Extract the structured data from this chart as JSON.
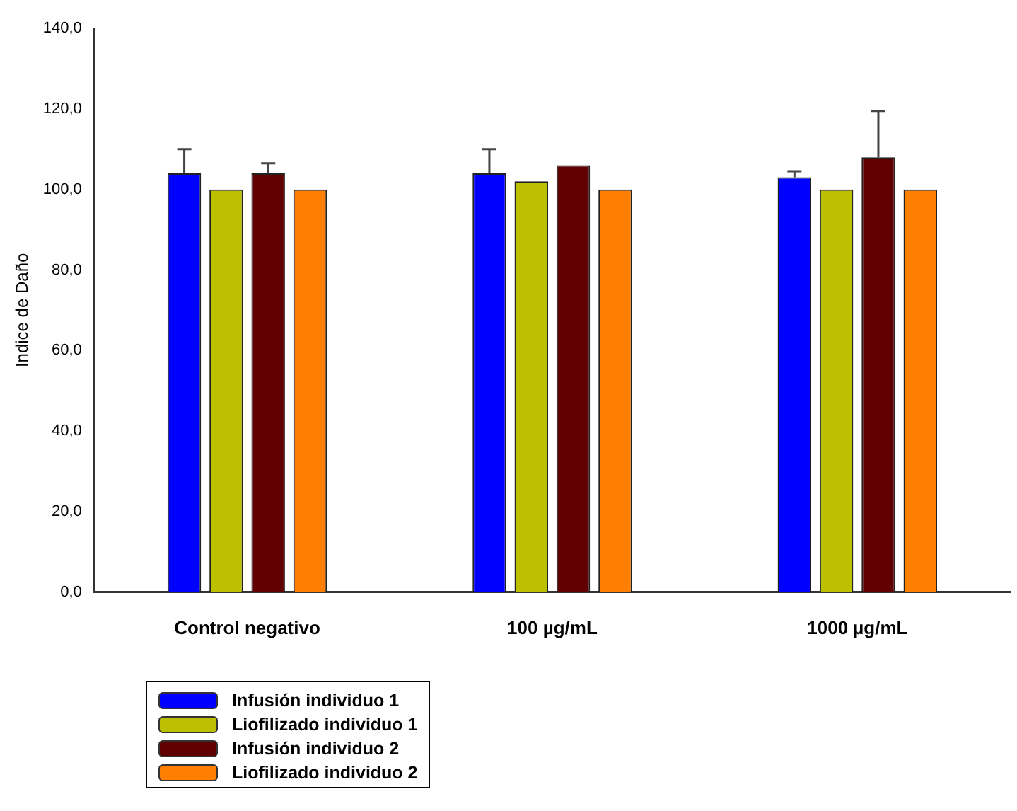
{
  "chart_data": {
    "type": "bar",
    "ylabel": "Indice de Daño",
    "categories": [
      "Control negativo",
      "100 µg/mL",
      "1000 µg/mL"
    ],
    "series": [
      {
        "name": "Infusión individuo 1",
        "color": "#0000ff",
        "values": [
          104,
          104,
          103
        ],
        "errors": [
          6,
          6,
          1.5
        ]
      },
      {
        "name": "Liofilizado individuo 1",
        "color": "#bcc000",
        "values": [
          100,
          102,
          100
        ]
      },
      {
        "name": "Infusión individuo 2",
        "color": "#600000",
        "values": [
          104,
          106,
          108
        ],
        "errors": [
          2.5,
          null,
          11.5
        ]
      },
      {
        "name": "Liofilizado individuo 2",
        "color": "#ff8000",
        "values": [
          100,
          100,
          100
        ]
      }
    ],
    "ylim": [
      0,
      140
    ],
    "yticks": [
      {
        "value": 0,
        "label": "0,0"
      },
      {
        "value": 20,
        "label": "20,0"
      },
      {
        "value": 40,
        "label": "40,0"
      },
      {
        "value": 60,
        "label": "60,0"
      },
      {
        "value": 80,
        "label": "80,0"
      },
      {
        "value": 100,
        "label": "100,0"
      },
      {
        "value": 120,
        "label": "120,0"
      },
      {
        "value": 140,
        "label": "140,0"
      }
    ],
    "grid": false,
    "legend": "bottom left"
  }
}
